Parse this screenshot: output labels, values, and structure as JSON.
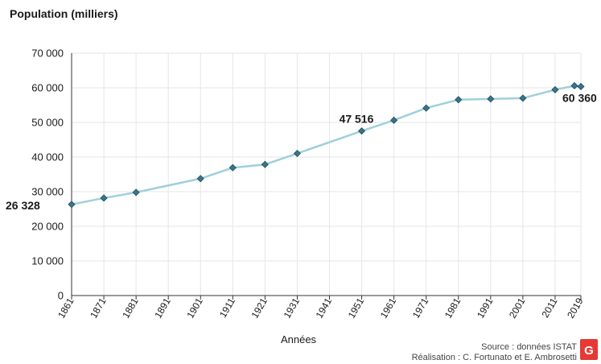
{
  "chart_data": {
    "type": "line",
    "title": "Population (milliers)",
    "xlabel": "Années",
    "ylabel": "Population (milliers)",
    "ylim": [
      0,
      70000
    ],
    "yticks": [
      0,
      10000,
      20000,
      30000,
      40000,
      50000,
      60000,
      70000
    ],
    "ytick_labels": [
      "0",
      "10 000",
      "20 000",
      "30 000",
      "40 000",
      "50 000",
      "60 000",
      "70 000"
    ],
    "xlim": [
      1861,
      2019
    ],
    "xticks": [
      1861,
      1871,
      1881,
      1891,
      1901,
      1911,
      1921,
      1931,
      1941,
      1951,
      1961,
      1971,
      1981,
      1991,
      2001,
      2011,
      2019
    ],
    "xtick_labels": [
      "1861",
      "1871",
      "1881",
      "1891",
      "1901",
      "1911",
      "1921",
      "1931",
      "1941",
      "1951",
      "1961",
      "1971",
      "1981",
      "1991",
      "2001",
      "2011",
      "2019"
    ],
    "grid": true,
    "series": [
      {
        "color": "#9fd0dc",
        "marker_color": "#3d7389",
        "x": [
          1861,
          1871,
          1881,
          1901,
          1911,
          1921,
          1931,
          1951,
          1961,
          1971,
          1981,
          1991,
          2001,
          2011,
          2017,
          2019
        ],
        "y": [
          26328,
          28151,
          29791,
          33778,
          36921,
          37856,
          41043,
          47516,
          50624,
          54137,
          56557,
          56778,
          56996,
          59434,
          60589,
          60360
        ]
      }
    ],
    "annotations": [
      {
        "x": 1861,
        "y": 26328,
        "text": "26 328"
      },
      {
        "x": 1951,
        "y": 47516,
        "text": "47 516"
      },
      {
        "x": 2019,
        "y": 60360,
        "text": "60 360"
      }
    ]
  },
  "footer": {
    "source": "Source : données ISTAT",
    "credit": "Réalisation : C. Fortunato et E. Ambrosetti",
    "logo_icon": "geo-logo-icon",
    "logo_text": "GÉO",
    "logo_color": "#e53935"
  }
}
